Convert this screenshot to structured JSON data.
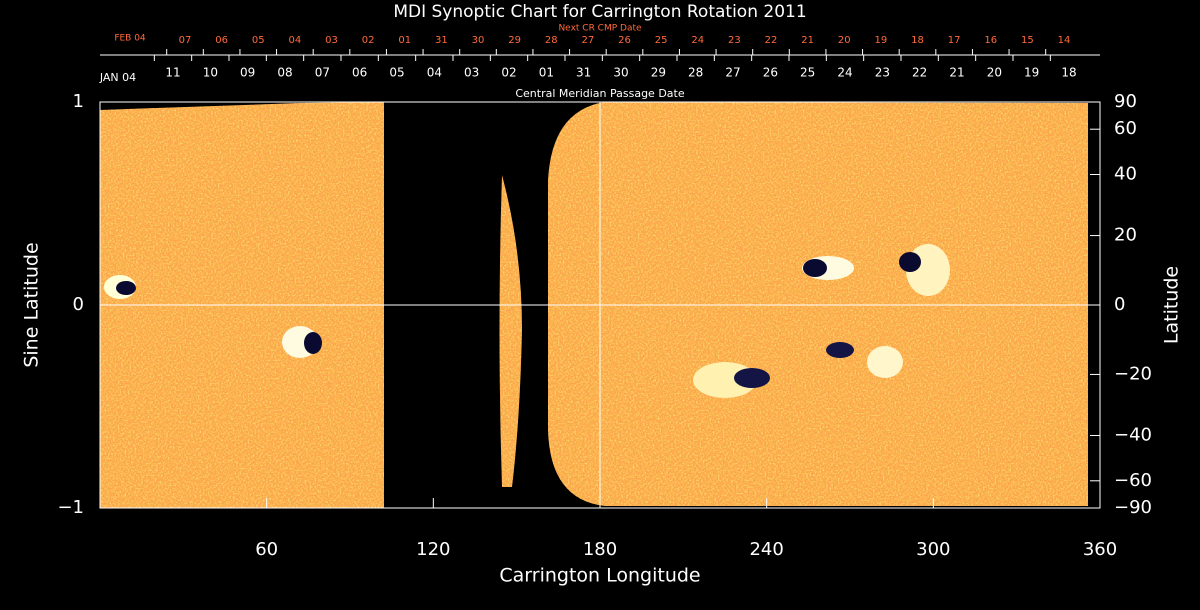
{
  "chart_data": {
    "type": "synoptic",
    "title": "MDI Synoptic Chart for Carrington Rotation 2011",
    "xlabel": "Carrington Longitude",
    "ylabel": "Sine Latitude",
    "y2label": "Latitude",
    "xlim": [
      0,
      360
    ],
    "xticks": [
      60,
      120,
      180,
      240,
      300,
      360
    ],
    "ylim": [
      -1,
      1
    ],
    "yticks": [
      {
        "value": -1,
        "label": "−1"
      },
      0,
      1
    ],
    "y2lim": [
      -90,
      90
    ],
    "y2scale": "sine",
    "y2ticks": [
      90,
      60,
      40,
      20,
      0,
      {
        "value": -20,
        "label": "−20"
      },
      {
        "value": -40,
        "label": "−40"
      },
      {
        "value": -60,
        "label": "−60"
      },
      {
        "value": -90,
        "label": "−90"
      }
    ],
    "reference_lines": {
      "x": 180,
      "y": 0
    },
    "date_axes": [
      {
        "label": "Next CR CMP Date",
        "month": "FEB 04",
        "color": "#ff6a3a",
        "days": [
          "07",
          "06",
          "05",
          "04",
          "03",
          "02",
          "01",
          "31",
          "30",
          "29",
          "28",
          "27",
          "26",
          "25",
          "24",
          "23",
          "22",
          "21",
          "20",
          "19",
          "18",
          "17",
          "16",
          "15",
          "14"
        ]
      },
      {
        "label": "Central Meridian Passage Date",
        "month": "JAN 04",
        "color": "#ffffff",
        "days": [
          "11",
          "10",
          "09",
          "08",
          "07",
          "06",
          "05",
          "04",
          "03",
          "02",
          "01",
          "31",
          "30",
          "29",
          "28",
          "27",
          "26",
          "25",
          "24",
          "23",
          "22",
          "21",
          "20",
          "19",
          "18"
        ]
      }
    ]
  }
}
